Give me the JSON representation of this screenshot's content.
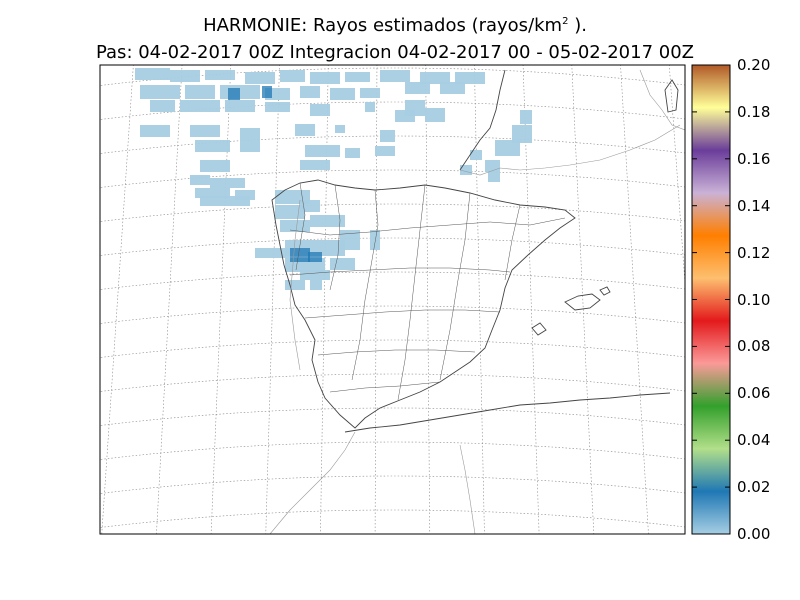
{
  "title": {
    "line1_prefix": "HARMONIE: Rayos estimados  (rayos/km",
    "line1_sup": "2",
    "line1_suffix": " ).",
    "line2": "Pas: 04-02-2017 00Z Integracion 04-02-2017 00 - 05-02-2017 00Z"
  },
  "colorbar": {
    "ticks": [
      "0.00",
      "0.02",
      "0.04",
      "0.06",
      "0.08",
      "0.10",
      "0.12",
      "0.14",
      "0.16",
      "0.18",
      "0.20"
    ],
    "min": 0.0,
    "max": 0.2,
    "stops": [
      "#a6cee3",
      "#1f78b4",
      "#b2df8a",
      "#33a02c",
      "#fb9a99",
      "#e31a1c",
      "#fdbf6f",
      "#ff7f00",
      "#cab2d6",
      "#6a3d9a",
      "#ffff99",
      "#b15928"
    ]
  },
  "chart_data": {
    "type": "heatmap",
    "title": "HARMONIE: Rayos estimados  (rayos/km2 ).",
    "subtitle": "Pas: 04-02-2017 00Z Integracion 04-02-2017 00 - 05-02-2017 00Z",
    "unit": "rayos/km2",
    "colorbar_range": [
      0.0,
      0.2
    ],
    "grid": true,
    "legend": "right",
    "notes_visible_values": "All plotted lightning densities fall in the lowest colour band (approx. 0.00-0.02 rayos/km2), concentrated over the Atlantic north-west of the Iberian Peninsula, Galicia, and southern France."
  }
}
